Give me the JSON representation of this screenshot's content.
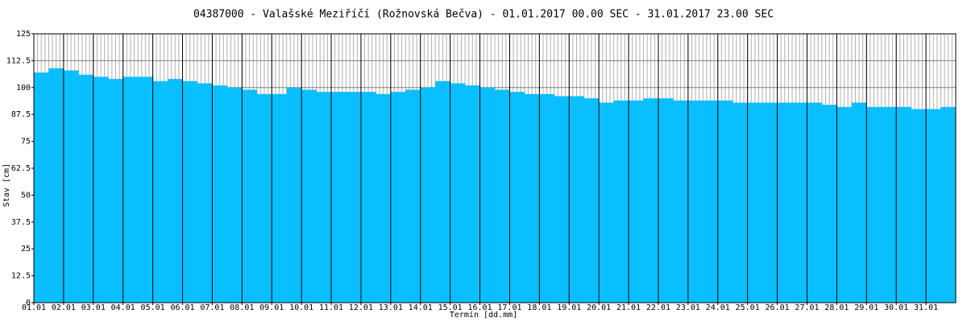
{
  "chart_data": {
    "type": "step-area",
    "title": "04387000  -  Valašské Meziříčí (Rožnovská Bečva)  -  01.01.2017 00.00 SEC - 31.01.2017 23.00 SEC",
    "x_label": "Termín [dd.mm]",
    "y_label": "Stav [cm]",
    "color": "#0abfff",
    "grid": true,
    "xlim": [
      0,
      31
    ],
    "xticks": [
      {
        "value": 0,
        "label": "01.01"
      },
      {
        "value": 1,
        "label": "02.01"
      },
      {
        "value": 2,
        "label": "03.01"
      },
      {
        "value": 3,
        "label": "04.01"
      },
      {
        "value": 4,
        "label": "05.01"
      },
      {
        "value": 5,
        "label": "06.01"
      },
      {
        "value": 6,
        "label": "07.01"
      },
      {
        "value": 7,
        "label": "08.01"
      },
      {
        "value": 8,
        "label": "09.01"
      },
      {
        "value": 9,
        "label": "10.01"
      },
      {
        "value": 10,
        "label": "11.01"
      },
      {
        "value": 11,
        "label": "12.01"
      },
      {
        "value": 12,
        "label": "13.01"
      },
      {
        "value": 13,
        "label": "14.01"
      },
      {
        "value": 14,
        "label": "15.01"
      },
      {
        "value": 15,
        "label": "16.01"
      },
      {
        "value": 16,
        "label": "17.01"
      },
      {
        "value": 17,
        "label": "18.01"
      },
      {
        "value": 18,
        "label": "19.01"
      },
      {
        "value": 19,
        "label": "20.01"
      },
      {
        "value": 20,
        "label": "21.01"
      },
      {
        "value": 21,
        "label": "22.01"
      },
      {
        "value": 22,
        "label": "23.01"
      },
      {
        "value": 23,
        "label": "24.01"
      },
      {
        "value": 24,
        "label": "25.01"
      },
      {
        "value": 25,
        "label": "26.01"
      },
      {
        "value": 26,
        "label": "27.01"
      },
      {
        "value": 27,
        "label": "28.01"
      },
      {
        "value": 28,
        "label": "29.01"
      },
      {
        "value": 29,
        "label": "30.01"
      },
      {
        "value": 30,
        "label": "31.01"
      }
    ],
    "ylim": [
      0,
      125
    ],
    "yticks": [
      0,
      12.5,
      25,
      37.5,
      50,
      62.5,
      75,
      87.5,
      100,
      112.5,
      125
    ],
    "x": [
      0,
      0.5,
      1,
      1.5,
      2,
      2.5,
      3,
      3.5,
      4,
      4.5,
      5,
      5.5,
      6,
      6.5,
      7,
      7.5,
      8,
      8.5,
      9,
      9.5,
      10,
      10.5,
      11,
      11.5,
      12,
      12.5,
      13,
      13.5,
      14,
      14.5,
      15,
      15.5,
      16,
      16.5,
      17,
      17.5,
      18,
      18.5,
      19,
      19.5,
      20,
      20.5,
      21,
      21.5,
      22,
      22.5,
      23,
      23.5,
      24,
      24.5,
      25,
      25.5,
      26,
      26.5,
      27,
      27.5,
      28,
      28.5,
      29,
      29.5,
      30,
      30.5
    ],
    "values": [
      107,
      109,
      108,
      106,
      105,
      104,
      105,
      105,
      103,
      104,
      103,
      102,
      101,
      100,
      99,
      97,
      97,
      100,
      99,
      98,
      98,
      98,
      98,
      97,
      98,
      99,
      100,
      103,
      102,
      101,
      100,
      99,
      98,
      97,
      97,
      96,
      96,
      95,
      93,
      94,
      94,
      95,
      95,
      94,
      94,
      94,
      94,
      93,
      93,
      93,
      93,
      93,
      93,
      92,
      91,
      93,
      91,
      91,
      91,
      90,
      90,
      91
    ]
  }
}
